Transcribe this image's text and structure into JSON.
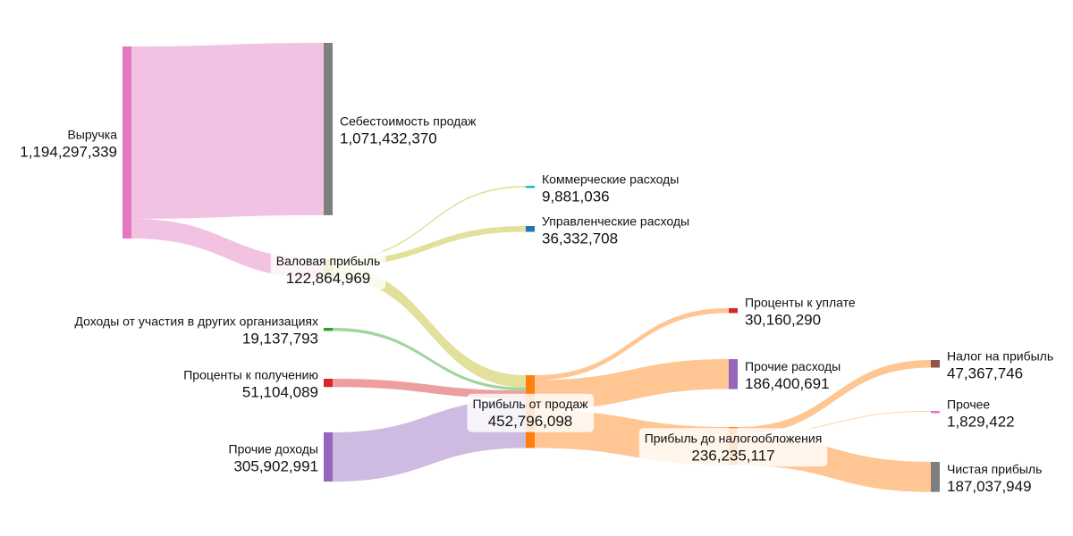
{
  "chart_data": {
    "type": "sankey",
    "nodes": [
      {
        "id": "revenue",
        "label": "Выручка",
        "value": "1,194,297,339",
        "color": "#e377c2"
      },
      {
        "id": "cogs",
        "label": "Себестоимость продаж",
        "value": "1,071,432,370",
        "color": "#7f7f7f"
      },
      {
        "id": "gross",
        "label": "Валовая прибыль",
        "value": "122,864,969",
        "color": "#bcbd22"
      },
      {
        "id": "commercial",
        "label": "Коммерческие расходы",
        "value": "9,881,036",
        "color": "#17becf"
      },
      {
        "id": "admin",
        "label": "Управленческие расходы",
        "value": "36,332,708",
        "color": "#1f77b4"
      },
      {
        "id": "participation",
        "label": "Доходы от участия в других организациях",
        "value": "19,137,793",
        "color": "#2ca02c"
      },
      {
        "id": "int_recv",
        "label": "Проценты к получению",
        "value": "51,104,089",
        "color": "#d62728"
      },
      {
        "id": "other_inc",
        "label": "Прочие доходы",
        "value": "305,902,991",
        "color": "#9467bd"
      },
      {
        "id": "op_profit",
        "label": "Прибыль от продаж",
        "value": "452,796,098",
        "color": "#ff7f0e"
      },
      {
        "id": "int_pay",
        "label": "Проценты к уплате",
        "value": "30,160,290",
        "color": "#d62728"
      },
      {
        "id": "other_exp",
        "label": "Прочие расходы",
        "value": "186,400,691",
        "color": "#9467bd"
      },
      {
        "id": "pretax",
        "label": "Прибыль до налогообложения",
        "value": "236,235,117",
        "color": "#ff7f0e"
      },
      {
        "id": "tax",
        "label": "Налог на прибыль",
        "value": "47,367,746",
        "color": "#8c564b"
      },
      {
        "id": "other",
        "label": "Прочее",
        "value": "1,829,422",
        "color": "#e377c2"
      },
      {
        "id": "net",
        "label": "Чистая прибыль",
        "value": "187,037,949",
        "color": "#7f7f7f"
      }
    ],
    "links": [
      {
        "source": "revenue",
        "target": "cogs",
        "value": 1071432370
      },
      {
        "source": "revenue",
        "target": "gross",
        "value": 122864969
      },
      {
        "source": "gross",
        "target": "commercial",
        "value": 9881036
      },
      {
        "source": "gross",
        "target": "admin",
        "value": 36332708
      },
      {
        "source": "gross",
        "target": "op_profit",
        "value": 76651225
      },
      {
        "source": "participation",
        "target": "op_profit",
        "value": 19137793
      },
      {
        "source": "int_recv",
        "target": "op_profit",
        "value": 51104089
      },
      {
        "source": "other_inc",
        "target": "op_profit",
        "value": 305902991
      },
      {
        "source": "op_profit",
        "target": "int_pay",
        "value": 30160290
      },
      {
        "source": "op_profit",
        "target": "other_exp",
        "value": 186400691
      },
      {
        "source": "op_profit",
        "target": "pretax",
        "value": 236235117
      },
      {
        "source": "pretax",
        "target": "tax",
        "value": 47367746
      },
      {
        "source": "pretax",
        "target": "other",
        "value": 1829422
      },
      {
        "source": "pretax",
        "target": "net",
        "value": 187037949
      }
    ]
  }
}
